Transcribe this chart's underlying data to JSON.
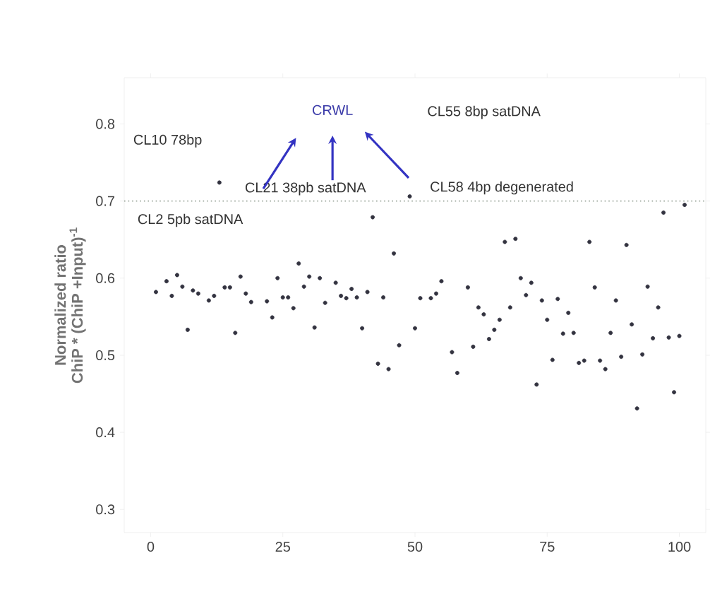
{
  "chart_data": {
    "type": "scatter",
    "ylabel": "Normalized ratio\nChiP * (ChiP +Input)$^{-1}$",
    "annotations": [
      "CL10 78bp",
      "CRWL",
      "CL55 8bp satDNA",
      "CL21 38pb satDNA",
      "CL58 4bp degenerated",
      "CL2 5pb satDNA"
    ],
    "x": [
      1,
      3,
      4,
      5,
      6,
      7,
      8,
      9,
      11,
      12,
      13,
      14,
      15,
      16,
      17,
      18,
      19,
      22,
      23,
      24,
      25,
      26,
      27,
      28,
      29,
      30,
      31,
      32,
      33,
      35,
      36,
      37,
      38,
      39,
      40,
      41,
      42,
      43,
      44,
      45,
      46,
      47,
      49,
      50,
      51,
      53,
      54,
      55,
      57,
      58,
      60,
      61,
      62,
      63,
      64,
      65,
      66,
      67,
      68,
      69,
      70,
      71,
      72,
      73,
      74,
      75,
      76,
      77,
      78,
      79,
      80,
      81,
      82,
      83,
      84,
      85,
      86,
      87,
      88,
      89,
      90,
      91,
      92,
      93,
      94,
      95,
      96,
      97,
      98,
      99,
      100,
      101
    ],
    "series": [
      {
        "color": "#333340",
        "values": [
          0.582,
          0.596,
          0.577,
          0.604,
          0.589,
          0.533,
          0.584,
          0.58,
          0.571,
          0.577,
          0.724,
          0.588,
          0.588,
          0.529,
          0.602,
          0.58,
          0.569,
          0.57,
          0.549,
          0.6,
          0.575,
          0.575,
          0.561,
          0.619,
          0.589,
          0.602,
          0.536,
          0.6,
          0.568,
          0.594,
          0.577,
          0.574,
          0.586,
          0.575,
          0.535,
          0.582,
          0.679,
          0.489,
          0.575,
          0.482,
          0.632,
          0.513,
          0.706,
          0.535,
          0.574,
          0.574,
          0.58,
          0.596,
          0.504,
          0.477,
          0.588,
          0.511,
          0.562,
          0.553,
          0.521,
          0.533,
          0.546,
          0.647,
          0.562,
          0.651,
          0.6,
          0.578,
          0.594,
          0.462,
          0.571,
          0.546,
          0.494,
          0.573,
          0.528,
          0.555,
          0.529,
          0.49,
          0.493,
          0.647,
          0.588,
          0.493,
          0.482,
          0.529,
          0.571,
          0.498,
          0.643,
          0.54,
          0.431,
          0.501,
          0.589,
          0.522,
          0.562,
          0.685,
          0.523,
          0.452,
          0.525,
          0.695
        ]
      }
    ],
    "xlim": [
      -5,
      105
    ],
    "ylim": [
      0.27,
      0.86
    ],
    "xticks": [
      0,
      25,
      50,
      75,
      100
    ],
    "yticks": [
      0.3,
      0.4,
      0.5,
      0.6,
      0.7,
      0.8
    ],
    "marker": "circle",
    "grid": false,
    "ref_lines": [
      {
        "axis": "y",
        "value": 0.7,
        "color": "#9aa59a",
        "line_style": "dotted"
      }
    ]
  }
}
